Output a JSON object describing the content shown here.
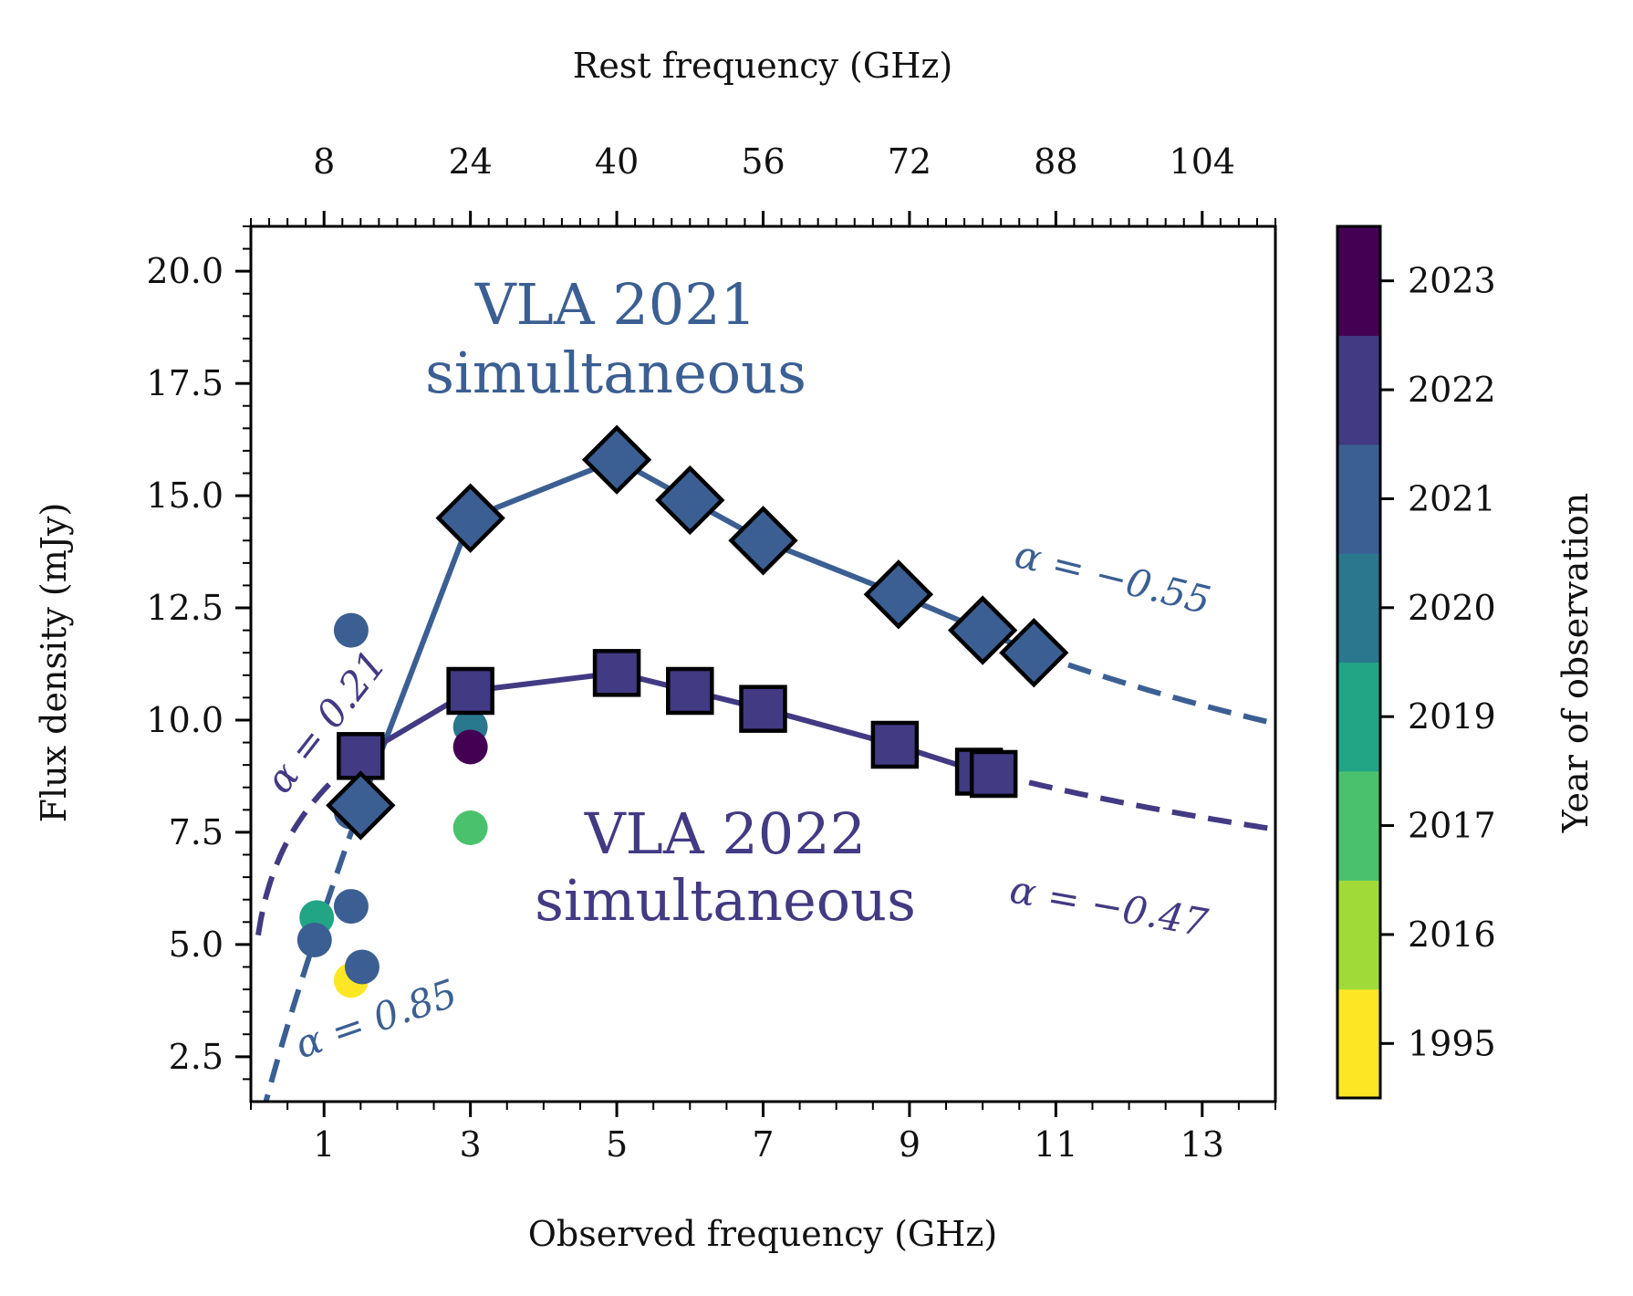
{
  "chart_data": {
    "type": "scatter",
    "xlabel": "Observed frequency (GHz)",
    "ylabel": "Flux density (mJy)",
    "top_xlabel": "Rest frequency (GHz)",
    "xlim": [
      0,
      14
    ],
    "ylim": [
      1.5,
      21
    ],
    "xticks": [
      {
        "v": 1,
        "label": "1"
      },
      {
        "v": 3,
        "label": "3"
      },
      {
        "v": 5,
        "label": "5"
      },
      {
        "v": 7,
        "label": "7"
      },
      {
        "v": 9,
        "label": "9"
      },
      {
        "v": 11,
        "label": "11"
      },
      {
        "v": 13,
        "label": "13"
      }
    ],
    "yticks": [
      {
        "v": 2.5,
        "label": "2.5"
      },
      {
        "v": 5.0,
        "label": "5.0"
      },
      {
        "v": 7.5,
        "label": "7.5"
      },
      {
        "v": 10.0,
        "label": "10.0"
      },
      {
        "v": 12.5,
        "label": "12.5"
      },
      {
        "v": 15.0,
        "label": "15.0"
      },
      {
        "v": 17.5,
        "label": "17.5"
      },
      {
        "v": 20.0,
        "label": "20.0"
      }
    ],
    "top_xticks": [
      {
        "v": 1.0,
        "label": "8"
      },
      {
        "v": 3.0,
        "label": "24"
      },
      {
        "v": 5.0,
        "label": "40"
      },
      {
        "v": 7.0,
        "label": "56"
      },
      {
        "v": 9.0,
        "label": "72"
      },
      {
        "v": 11.0,
        "label": "88"
      },
      {
        "v": 13.0,
        "label": "104"
      }
    ],
    "series": [
      {
        "key": "vla2021",
        "marker": "diamond",
        "color": "#3b5f92",
        "points": [
          [
            1.5,
            8.1
          ],
          [
            3.0,
            14.5
          ],
          [
            5.0,
            15.8
          ],
          [
            6.0,
            14.9
          ],
          [
            7.0,
            14.0
          ],
          [
            8.85,
            12.8
          ],
          [
            10.0,
            12.0
          ],
          [
            10.7,
            11.5
          ]
        ],
        "extrapolation": {
          "x_from": 10.7,
          "x_to": 14.0,
          "alpha": -0.55
        },
        "lowfit": {
          "x_from": 0.15,
          "x_to": 1.5,
          "alpha": 0.85
        }
      },
      {
        "key": "vla2022",
        "marker": "square",
        "color": "#423a83",
        "points": [
          [
            1.5,
            9.2
          ],
          [
            3.0,
            10.65
          ],
          [
            5.0,
            11.05
          ],
          [
            6.0,
            10.65
          ],
          [
            7.0,
            10.25
          ],
          [
            8.8,
            9.45
          ],
          [
            9.95,
            8.85
          ],
          [
            10.15,
            8.8
          ]
        ],
        "extrapolation": {
          "x_from": 10.15,
          "x_to": 14.0,
          "alpha": -0.47
        },
        "lowfit": {
          "x_from": 0.1,
          "x_to": 1.5,
          "alpha": 0.21
        }
      }
    ],
    "archival_points": [
      {
        "x": 0.9,
        "y": 5.6,
        "year": "2019",
        "color": "#21a585"
      },
      {
        "x": 0.87,
        "y": 5.1,
        "year": "2021",
        "color": "#3b5f92"
      },
      {
        "x": 1.37,
        "y": 12.0,
        "year": "2021",
        "color": "#3b5f92"
      },
      {
        "x": 1.37,
        "y": 7.95,
        "year": "2021",
        "color": "#3b5f92"
      },
      {
        "x": 1.37,
        "y": 5.85,
        "year": "2021",
        "color": "#3b5f92"
      },
      {
        "x": 1.37,
        "y": 4.2,
        "year": "1995",
        "color": "#fde725"
      },
      {
        "x": 1.52,
        "y": 4.5,
        "year": "2021",
        "color": "#3b5f92"
      },
      {
        "x": 3.0,
        "y": 9.85,
        "year": "2020",
        "color": "#2a788e"
      },
      {
        "x": 3.0,
        "y": 9.4,
        "year": "2023",
        "color": "#440154"
      },
      {
        "x": 3.0,
        "y": 7.6,
        "year": "2017",
        "color": "#4ac16d"
      }
    ],
    "annotations": {
      "vla2021_line1": "VLA 2021",
      "vla2021_line2": "simultaneous",
      "vla2022_line1": "VLA 2022",
      "vla2022_line2": "simultaneous",
      "alpha_2021_high": "α = −0.55",
      "alpha_2022_high": "α = −0.47",
      "alpha_2021_low": "α = 0.85",
      "alpha_2022_low": "α = 0.21"
    },
    "colorbar": {
      "label": "Year of observation",
      "entries": [
        {
          "year": "1995",
          "color": "#fde725"
        },
        {
          "year": "2016",
          "color": "#a0da39"
        },
        {
          "year": "2017",
          "color": "#4ac16d"
        },
        {
          "year": "2019",
          "color": "#21a585"
        },
        {
          "year": "2020",
          "color": "#2a788e"
        },
        {
          "year": "2021",
          "color": "#3b5f92"
        },
        {
          "year": "2022",
          "color": "#423a83"
        },
        {
          "year": "2023",
          "color": "#440154"
        }
      ]
    }
  }
}
